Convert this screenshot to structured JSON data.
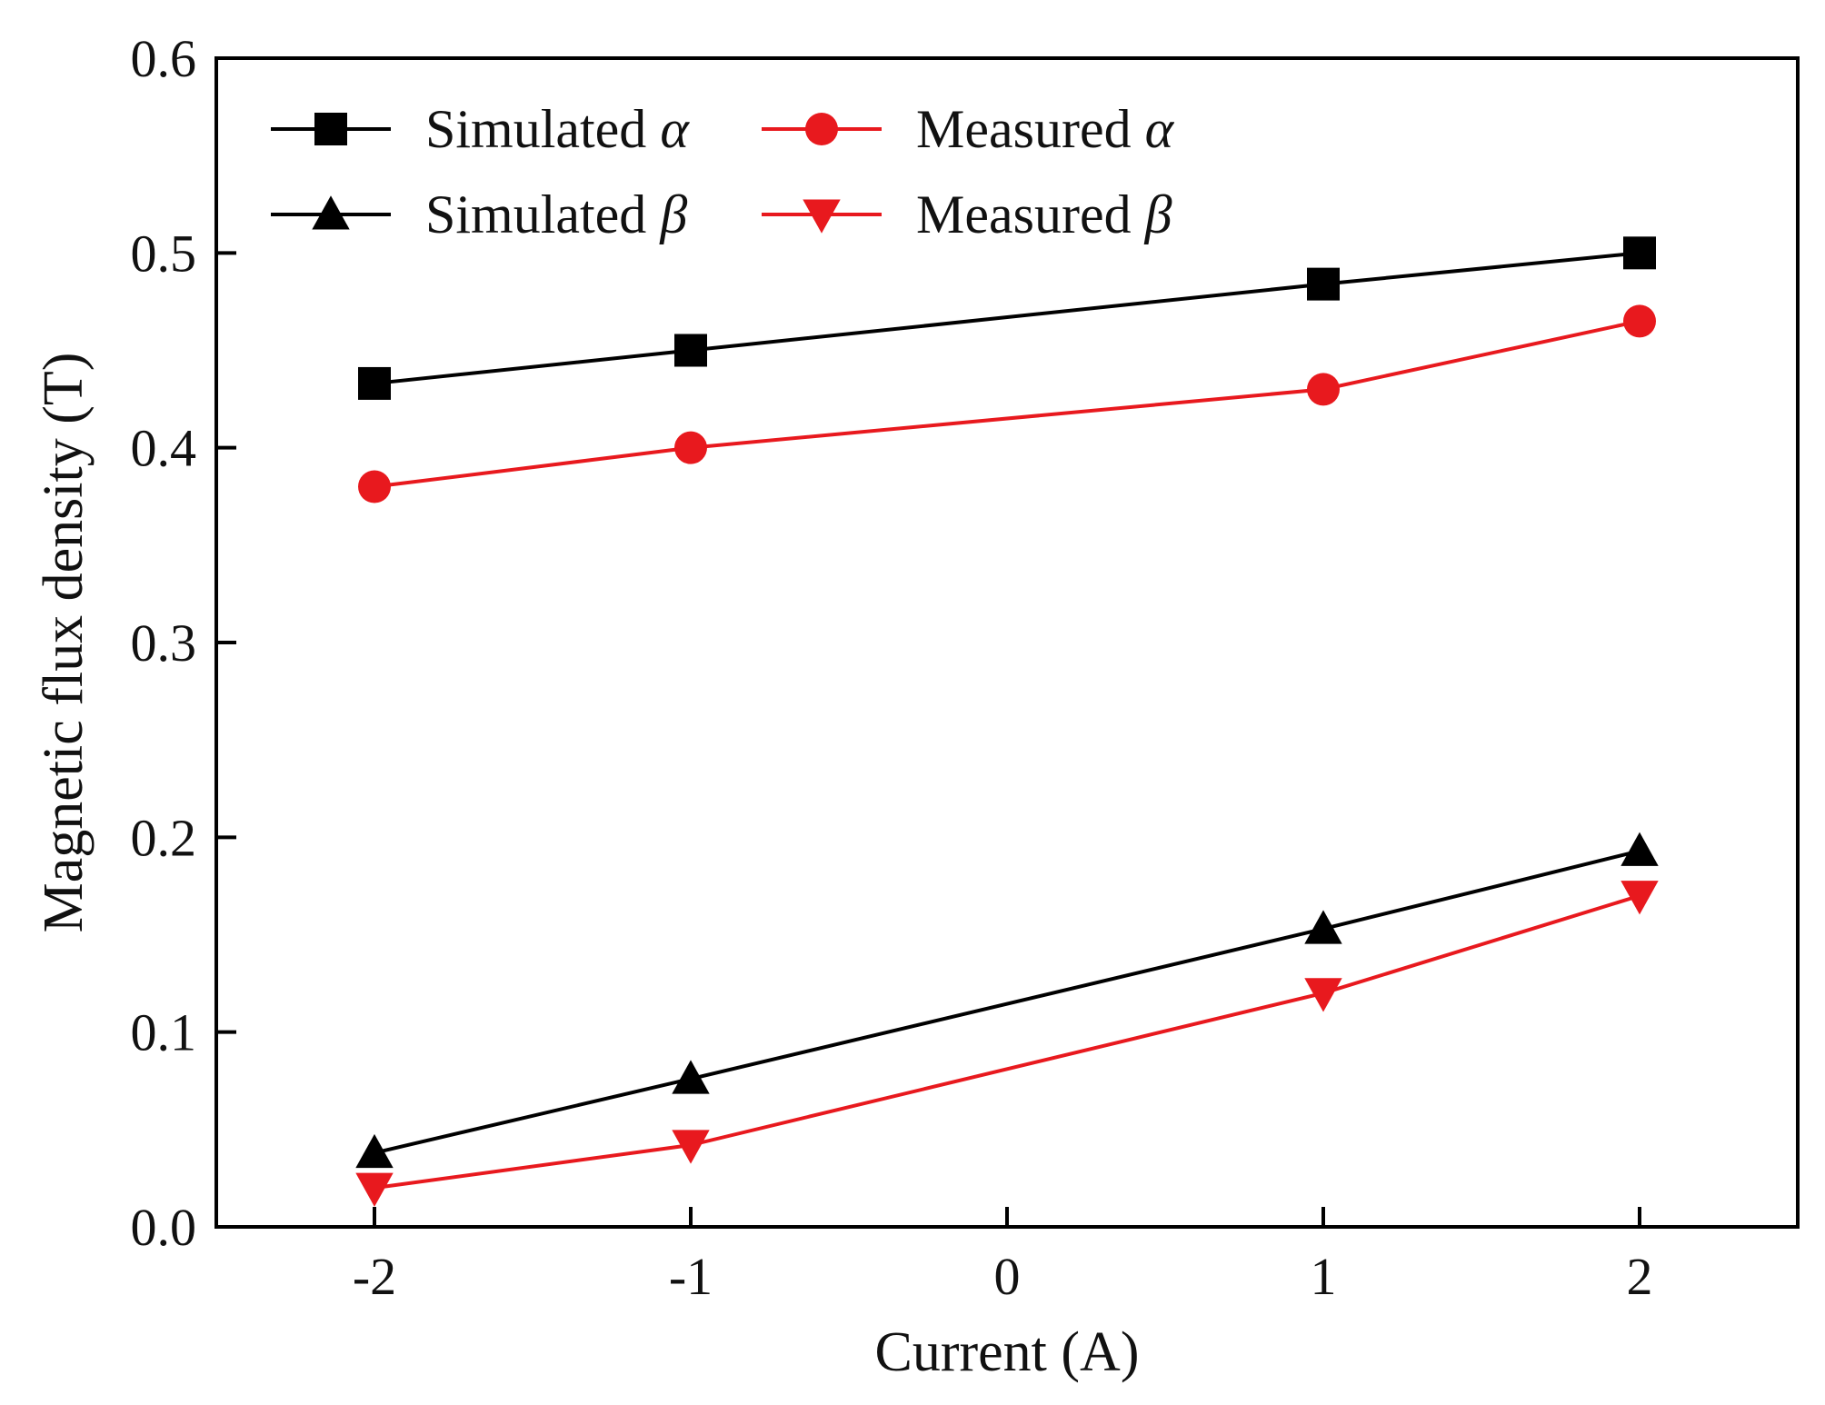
{
  "chart_data": {
    "type": "line",
    "title": "",
    "xlabel": "Current (A)",
    "ylabel": "Magnetic flux density (T)",
    "x": [
      -2,
      -1,
      1,
      2
    ],
    "xlim": [
      -2.5,
      2.5
    ],
    "ylim": [
      0.0,
      0.6
    ],
    "xticks": [
      -2,
      -1,
      0,
      1,
      2
    ],
    "xtick_labels": [
      "-2",
      "-1",
      "0",
      "1",
      "2"
    ],
    "yticks": [
      0.0,
      0.1,
      0.2,
      0.3,
      0.4,
      0.5,
      0.6
    ],
    "ytick_labels": [
      "0.0",
      "0.1",
      "0.2",
      "0.3",
      "0.4",
      "0.5",
      "0.6"
    ],
    "grid": false,
    "legend_position": "top-left",
    "series": [
      {
        "name": "Simulated",
        "greek": "α",
        "marker": "square",
        "color": "#000000",
        "values": [
          0.433,
          0.45,
          0.484,
          0.5
        ]
      },
      {
        "name": "Measured",
        "greek": "α",
        "marker": "circle",
        "color": "#e8191e",
        "values": [
          0.38,
          0.4,
          0.43,
          0.465
        ]
      },
      {
        "name": "Simulated",
        "greek": "β",
        "marker": "triangle-up",
        "color": "#000000",
        "values": [
          0.038,
          0.076,
          0.153,
          0.193
        ]
      },
      {
        "name": "Measured",
        "greek": "β",
        "marker": "triangle-down",
        "color": "#e8191e",
        "values": [
          0.02,
          0.042,
          0.12,
          0.17
        ]
      }
    ]
  }
}
